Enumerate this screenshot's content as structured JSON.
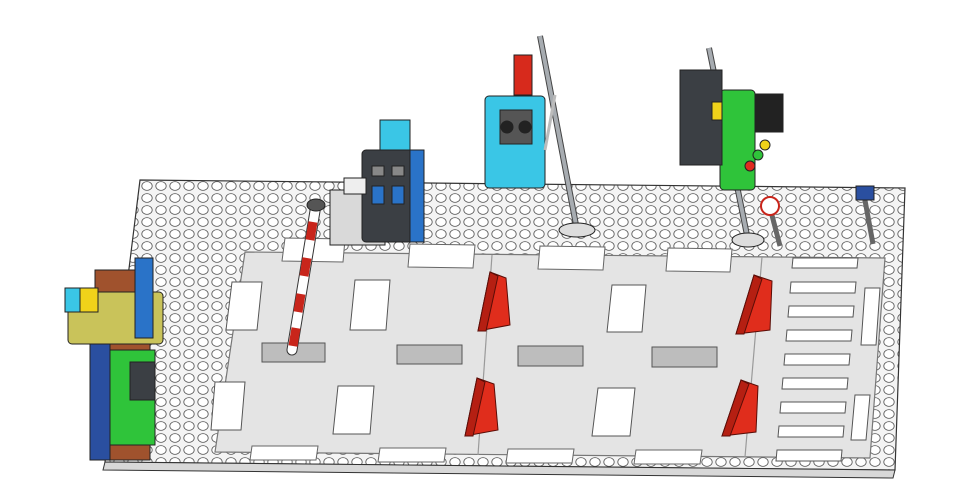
{
  "scene": {
    "background": "#ffffff",
    "colors": {
      "baseplate": "#f4f4f4",
      "stud": "#ffffff",
      "road": "#e6e6e6",
      "road_edge": "#cfcfcf",
      "lane_marking": "#ffffff",
      "speed_bump": "#e02d1c",
      "barrier_red": "#c8251b",
      "barrier_white": "#ffffff",
      "hub_cyan": "#3ac6e6",
      "hub_blue": "#2a73c8",
      "hub_dark": "#3b3f44",
      "light_green": "#2fc43a",
      "light_yellow": "#f0d21a",
      "light_red": "#e12a1f",
      "pole_gray": "#8a8f95",
      "outline": "#2a2a2a"
    },
    "objects": [
      "baseplate",
      "road-surface",
      "zebra-crossing",
      "speed-bumps",
      "barrier-gate",
      "control-hub-left",
      "camera-pole",
      "traffic-light",
      "sign-posts",
      "side-sensor-assembly"
    ]
  }
}
